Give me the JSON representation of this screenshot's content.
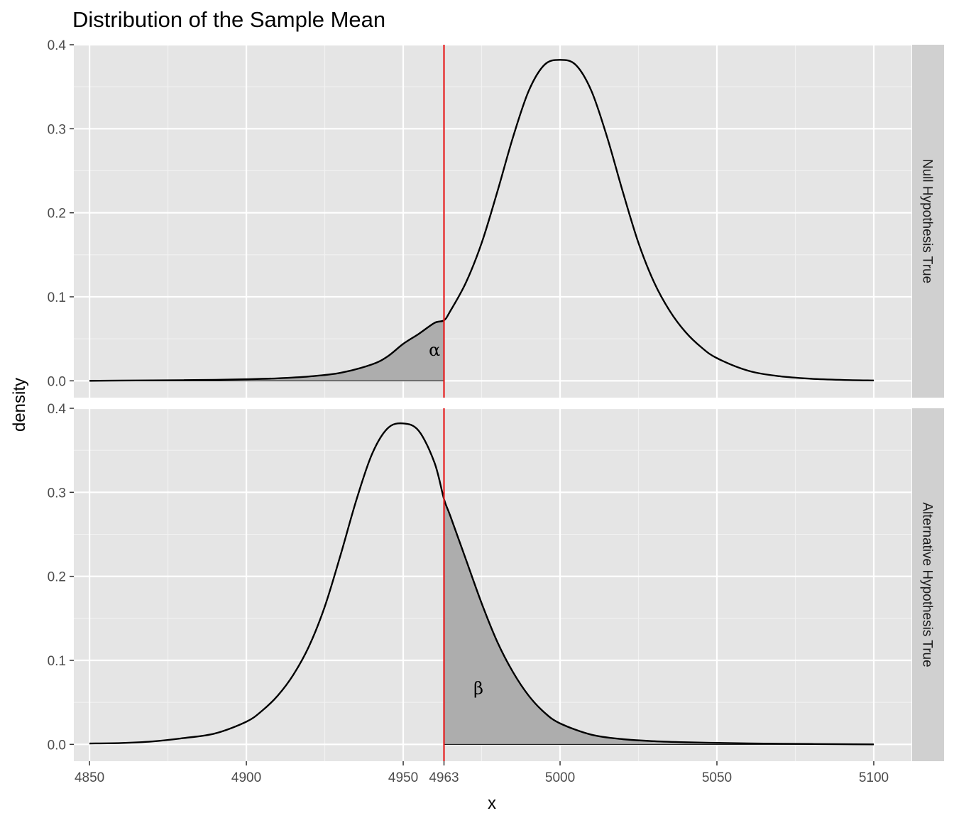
{
  "chart_data": {
    "type": "area",
    "title": "Distribution of the Sample Mean",
    "xlabel": "x",
    "ylabel": "density",
    "xlim": [
      4845,
      5112
    ],
    "ylim": [
      -0.02,
      0.4
    ],
    "x_ticks": [
      4850,
      4900,
      4950,
      4963,
      5000,
      5050,
      5100
    ],
    "x_tick_labels": [
      "4850",
      "4900",
      "4950",
      "4963",
      "5000",
      "5050",
      "5100"
    ],
    "y_ticks": [
      0.0,
      0.1,
      0.2,
      0.3,
      0.4
    ],
    "y_tick_labels": [
      "0.0",
      "0.1",
      "0.2",
      "0.3",
      "0.4"
    ],
    "critical_value": 4963,
    "critical_line_color": "#e41a1c",
    "curve_color": "#000000",
    "shade_color": "#adadad",
    "panel_background": "#e5e5e5",
    "strip_background": "#d0d0d0",
    "facets": [
      {
        "strip_label": "Null Hypothesis True",
        "curve": {
          "x": [
            4850,
            4860,
            4870,
            4880,
            4890,
            4900,
            4910,
            4920,
            4930,
            4940,
            4945,
            4950,
            4955,
            4960,
            4963,
            4965,
            4970,
            4975,
            4980,
            4985,
            4990,
            4995,
            5000,
            5005,
            5010,
            5015,
            5020,
            5025,
            5030,
            5035,
            5040,
            5045,
            5050,
            5060,
            5070,
            5080,
            5090,
            5100
          ],
          "y": [
            0.0,
            0.0003,
            0.0005,
            0.0008,
            0.0012,
            0.0019,
            0.003,
            0.0052,
            0.0095,
            0.0195,
            0.029,
            0.044,
            0.056,
            0.069,
            0.072,
            0.083,
            0.117,
            0.164,
            0.225,
            0.29,
            0.345,
            0.376,
            0.382,
            0.376,
            0.345,
            0.29,
            0.225,
            0.164,
            0.117,
            0.083,
            0.058,
            0.04,
            0.027,
            0.012,
            0.0055,
            0.0025,
            0.0011,
            0.0004
          ]
        },
        "shaded_region": {
          "from": 4850,
          "to": 4963,
          "label": "α",
          "label_x": 4960,
          "label_y": 0.03
        }
      },
      {
        "strip_label": "Alternative Hypothesis True",
        "curve": {
          "x": [
            4850,
            4860,
            4870,
            4880,
            4890,
            4900,
            4905,
            4910,
            4915,
            4920,
            4925,
            4930,
            4935,
            4940,
            4945,
            4950,
            4955,
            4960,
            4963,
            4965,
            4970,
            4975,
            4980,
            4985,
            4990,
            4995,
            5000,
            5010,
            5020,
            5030,
            5040,
            5050,
            5060,
            5070,
            5080,
            5090,
            5100
          ],
          "y": [
            0.0011,
            0.0016,
            0.0035,
            0.0075,
            0.013,
            0.027,
            0.04,
            0.058,
            0.083,
            0.117,
            0.164,
            0.225,
            0.29,
            0.345,
            0.376,
            0.382,
            0.373,
            0.335,
            0.292,
            0.272,
            0.22,
            0.168,
            0.122,
            0.086,
            0.058,
            0.038,
            0.025,
            0.0115,
            0.0062,
            0.0038,
            0.0025,
            0.0018,
            0.0012,
            0.0008,
            0.0005,
            0.0002,
            0.0
          ]
        },
        "shaded_region": {
          "from": 4963,
          "to": 5100,
          "label": "β",
          "label_x": 4974,
          "label_y": 0.06
        }
      }
    ]
  }
}
